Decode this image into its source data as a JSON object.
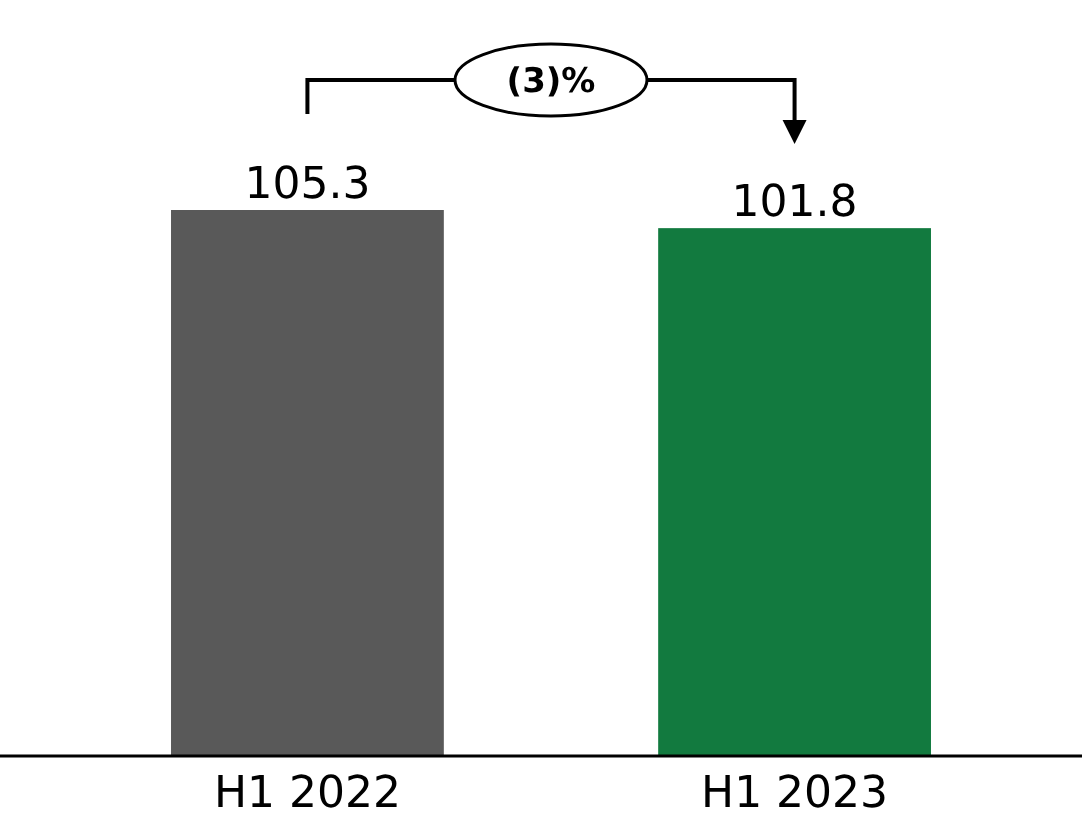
{
  "chart_data": {
    "type": "bar",
    "categories": [
      "H1 2022",
      "H1 2023"
    ],
    "values": [
      105.3,
      101.8
    ],
    "colors": [
      "#595959",
      "#127a3f"
    ],
    "data_labels": true,
    "annotations": [
      "(3)%"
    ]
  }
}
